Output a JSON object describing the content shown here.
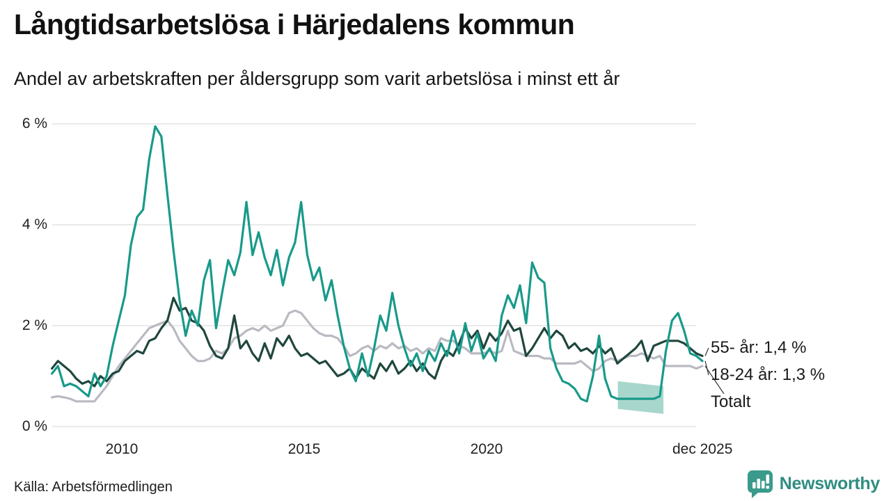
{
  "header": {
    "title": "Långtidsarbetslösa i Härjedalens kommun",
    "subtitle": "Andel av arbetskraften per åldersgrupp som varit arbetslösa i minst ett år"
  },
  "source": "Källa: Arbetsförmedlingen",
  "branding": {
    "name": "Newsworthy",
    "logo_icon": "speech-bubble-bar-chart-icon",
    "color": "#2f8d80"
  },
  "colors": {
    "grid": "#e3e3e3",
    "band_fill": "#a7d7cc",
    "leader_line": "#333333",
    "text": "#1a1a1a"
  },
  "chart_data": {
    "type": "line",
    "title": "Långtidsarbetslösa i Härjedalens kommun",
    "subtitle": "Andel av arbetskraften per åldersgrupp som varit arbetslösa i minst ett år",
    "xlabel": "",
    "ylabel": "",
    "ylim": [
      0,
      6
    ],
    "xlim": [
      2008.08,
      2025.92
    ],
    "grid": "horizontal",
    "legend_position": "end-of-line-labels",
    "y_ticks": [
      {
        "label": "0 %",
        "value": 0
      },
      {
        "label": "2 %",
        "value": 2
      },
      {
        "label": "4 %",
        "value": 4
      },
      {
        "label": "6 %",
        "value": 6
      }
    ],
    "x_ticks": [
      {
        "label": "2010",
        "value": 2010
      },
      {
        "label": "2015",
        "value": 2015
      },
      {
        "label": "2020",
        "value": 2020
      },
      {
        "label": "dec 2025",
        "value": 2025.92
      }
    ],
    "end_label_order": [
      "55- år",
      "18-24 år",
      "Totalt"
    ],
    "series": [
      {
        "name": "Totalt",
        "end_label": "Totalt",
        "color": "#b9bac2",
        "start": 2008.0833,
        "step_years": 0.1666667,
        "values": [
          0.58,
          0.6,
          0.58,
          0.55,
          0.5,
          0.5,
          0.5,
          0.5,
          0.65,
          0.8,
          1.0,
          1.2,
          1.35,
          1.5,
          1.65,
          1.8,
          1.95,
          2.0,
          2.05,
          2.1,
          1.95,
          1.7,
          1.55,
          1.4,
          1.3,
          1.3,
          1.35,
          1.5,
          1.45,
          1.55,
          1.75,
          1.8,
          1.9,
          1.95,
          1.9,
          2.0,
          1.9,
          1.95,
          2.0,
          2.25,
          2.3,
          2.25,
          2.1,
          1.95,
          1.85,
          1.8,
          1.8,
          1.75,
          1.6,
          1.4,
          1.45,
          1.55,
          1.6,
          1.5,
          1.6,
          1.55,
          1.65,
          1.55,
          1.6,
          1.5,
          1.55,
          1.45,
          1.55,
          1.5,
          1.75,
          1.7,
          1.7,
          1.6,
          1.55,
          1.45,
          1.45,
          1.45,
          1.5,
          1.45,
          1.5,
          1.9,
          1.5,
          1.45,
          1.4,
          1.4,
          1.4,
          1.35,
          1.35,
          1.25,
          1.25,
          1.25,
          1.25,
          1.3,
          1.2,
          1.1,
          1.15,
          1.3,
          1.35,
          1.3,
          1.35,
          1.4,
          1.4,
          1.45,
          1.4,
          1.35,
          1.4,
          1.2,
          1.2,
          1.2,
          1.2,
          1.2,
          1.15,
          1.2
        ]
      },
      {
        "name": "55- år",
        "end_label": "55- år: 1,4 %",
        "color": "#1f473e",
        "start": 2008.0833,
        "step_years": 0.1666667,
        "values": [
          1.15,
          1.3,
          1.2,
          1.1,
          0.95,
          0.85,
          0.9,
          0.8,
          1.0,
          0.9,
          1.05,
          1.1,
          1.3,
          1.4,
          1.5,
          1.45,
          1.7,
          1.75,
          1.95,
          2.1,
          2.55,
          2.3,
          2.35,
          2.1,
          2.05,
          1.9,
          1.6,
          1.4,
          1.35,
          1.55,
          2.2,
          1.55,
          1.7,
          1.45,
          1.3,
          1.65,
          1.35,
          1.75,
          1.6,
          1.8,
          1.55,
          1.4,
          1.45,
          1.35,
          1.25,
          1.3,
          1.15,
          1.0,
          1.05,
          1.15,
          0.95,
          1.15,
          1.05,
          0.95,
          1.25,
          1.1,
          1.3,
          1.05,
          1.15,
          1.3,
          1.1,
          1.25,
          1.05,
          0.95,
          1.3,
          1.5,
          1.4,
          1.65,
          1.95,
          1.75,
          1.9,
          1.55,
          1.85,
          1.7,
          1.85,
          2.1,
          1.9,
          1.95,
          1.4,
          1.55,
          1.75,
          1.95,
          1.75,
          1.9,
          1.8,
          1.55,
          1.65,
          1.5,
          1.55,
          1.45,
          1.6,
          1.45,
          1.55,
          1.25,
          1.35,
          1.45,
          1.55,
          1.7,
          1.3,
          1.6,
          1.65,
          1.7,
          1.7,
          1.7,
          1.65,
          1.55,
          1.45,
          1.4
        ]
      },
      {
        "name": "18-24 år",
        "end_label": "18-24 år: 1,3 %",
        "color": "#189a8a",
        "start": 2008.0833,
        "step_years": 0.1666667,
        "values": [
          1.05,
          1.2,
          0.8,
          0.85,
          0.8,
          0.7,
          0.6,
          1.05,
          0.8,
          1.0,
          1.6,
          2.1,
          2.6,
          3.6,
          4.15,
          4.3,
          5.3,
          5.95,
          5.75,
          4.6,
          3.5,
          2.5,
          1.8,
          2.3,
          2.0,
          2.9,
          3.3,
          1.95,
          2.65,
          3.3,
          3.0,
          3.45,
          4.45,
          3.4,
          3.85,
          3.35,
          3.0,
          3.5,
          2.8,
          3.35,
          3.65,
          4.45,
          3.4,
          2.9,
          3.15,
          2.5,
          2.9,
          2.2,
          1.6,
          1.15,
          0.9,
          1.45,
          1.0,
          1.55,
          2.2,
          1.9,
          2.65,
          2.0,
          1.55,
          1.2,
          1.45,
          1.1,
          1.5,
          1.3,
          1.65,
          1.4,
          1.9,
          1.45,
          2.05,
          1.5,
          1.85,
          1.35,
          1.55,
          1.3,
          2.2,
          2.6,
          2.35,
          2.8,
          2.05,
          3.25,
          2.95,
          2.85,
          1.55,
          1.15,
          0.9,
          0.85,
          0.75,
          0.55,
          0.5,
          1.0,
          1.8,
          0.95,
          0.6,
          0.55,
          0.55,
          0.55,
          0.55,
          0.55,
          0.55,
          0.55,
          0.6,
          1.5,
          2.1,
          2.25,
          1.9,
          1.45,
          1.4,
          1.3
        ]
      }
    ],
    "uncertainty_band": {
      "series": "18-24 år",
      "x": [
        2023.6,
        2024.85
      ],
      "top": [
        0.9,
        0.8
      ],
      "bottom": [
        0.35,
        0.25
      ]
    }
  }
}
